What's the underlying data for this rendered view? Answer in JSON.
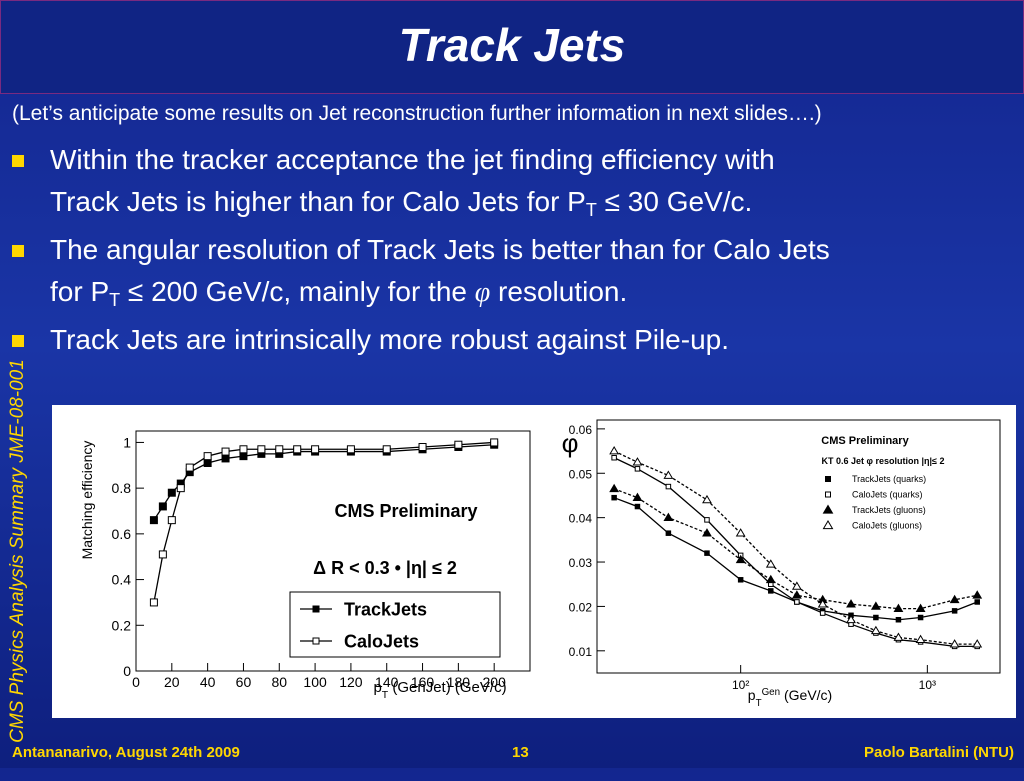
{
  "title": "Track Jets",
  "subtitle": "(Let’s anticipate some results on Jet reconstruction further information in next slides….)",
  "bullets": [
    [
      "Within the tracker acceptance the jet finding efficiency with",
      "Track Jets is higher than for Calo Jets for P",
      "T",
      "  ≤ 30 GeV/c."
    ],
    [
      "The angular resolution of Track Jets is better than for Calo Jets",
      "for P",
      "T",
      " ≤ 200 GeV/c, mainly for the ",
      "φ",
      " resolution."
    ],
    [
      "Track Jets are intrinsically more robust against Pile-up."
    ]
  ],
  "side_text": "CMS Physics Analysis Summary JME-08-001",
  "footer": {
    "left": "Antananarivo, August 24th 2009",
    "center": "13",
    "right": "Paolo Bartalini (NTU)"
  },
  "chart_data": [
    {
      "type": "line",
      "ylabel": "Matching efficiency",
      "xlabel": [
        "p",
        "T",
        " (GenJet) (GeV/c)"
      ],
      "annotations": [
        "CMS Preliminary",
        "Δ R < 0.3 • |η| ≤ 2"
      ],
      "x": [
        10,
        15,
        20,
        25,
        30,
        40,
        50,
        60,
        70,
        80,
        90,
        100,
        120,
        140,
        160,
        180,
        200
      ],
      "series": [
        {
          "name": "TrackJets",
          "color": "#000000",
          "marker": "square-filled",
          "dashed": false,
          "values": [
            0.66,
            0.72,
            0.78,
            0.82,
            0.87,
            0.91,
            0.93,
            0.94,
            0.95,
            0.95,
            0.96,
            0.96,
            0.96,
            0.96,
            0.97,
            0.98,
            0.99
          ]
        },
        {
          "name": "CaloJets",
          "color": "#000000",
          "marker": "square-open",
          "dashed": false,
          "values": [
            0.3,
            0.51,
            0.66,
            0.8,
            0.89,
            0.94,
            0.96,
            0.97,
            0.97,
            0.97,
            0.97,
            0.97,
            0.97,
            0.97,
            0.98,
            0.99,
            1.0
          ]
        }
      ],
      "xlim": [
        0,
        220
      ],
      "xticks": [
        0,
        20,
        40,
        60,
        80,
        100,
        120,
        140,
        160,
        180,
        200
      ],
      "ylim": [
        0,
        1.05
      ],
      "yticks": [
        0,
        0.2,
        0.4,
        0.6,
        0.8,
        1
      ],
      "legend": "lower right"
    },
    {
      "type": "line",
      "ylabel": "φ",
      "xlabel": [
        "p",
        "T",
        "Gen",
        " (GeV/c)"
      ],
      "annotations": [
        "CMS Preliminary",
        "KT 0.6 Jet φ resolution   |η|≤ 2"
      ],
      "x": [
        21,
        28,
        41,
        66,
        100,
        145,
        200,
        275,
        390,
        530,
        700,
        920,
        1400,
        1850
      ],
      "xscale": "log",
      "series": [
        {
          "name": "TrackJets (quarks)",
          "color": "#000000",
          "marker": "square-filled",
          "dashed": false,
          "values": [
            0.0445,
            0.0425,
            0.0365,
            0.032,
            0.026,
            0.0235,
            0.021,
            0.019,
            0.018,
            0.0175,
            0.017,
            0.0175,
            0.019,
            0.021
          ]
        },
        {
          "name": "CaloJets (quarks)",
          "color": "#000000",
          "marker": "square-open",
          "dashed": false,
          "values": [
            0.0535,
            0.051,
            0.047,
            0.0395,
            0.0315,
            0.025,
            0.021,
            0.0185,
            0.016,
            0.014,
            0.0125,
            0.012,
            0.011,
            0.011
          ]
        },
        {
          "name": "TrackJets (gluons)",
          "color": "#000000",
          "marker": "triangle-filled",
          "dashed": true,
          "values": [
            0.0465,
            0.0445,
            0.04,
            0.0365,
            0.0305,
            0.026,
            0.0225,
            0.0215,
            0.0205,
            0.02,
            0.0195,
            0.0195,
            0.0215,
            0.0225
          ]
        },
        {
          "name": "CaloJets (gluons)",
          "color": "#000000",
          "marker": "triangle-open",
          "dashed": true,
          "values": [
            0.055,
            0.0525,
            0.0495,
            0.044,
            0.0365,
            0.0295,
            0.0245,
            0.0205,
            0.017,
            0.0145,
            0.013,
            0.0125,
            0.0115,
            0.0115
          ]
        }
      ],
      "xlim": [
        17,
        2450
      ],
      "xticks": [
        {
          "value": 100,
          "label": "10²"
        },
        {
          "value": 1000,
          "label": "10³"
        }
      ],
      "ylim": [
        0.005,
        0.062
      ],
      "yticks": [
        0.01,
        0.02,
        0.03,
        0.04,
        0.05,
        0.06
      ],
      "legend": "upper right"
    }
  ]
}
